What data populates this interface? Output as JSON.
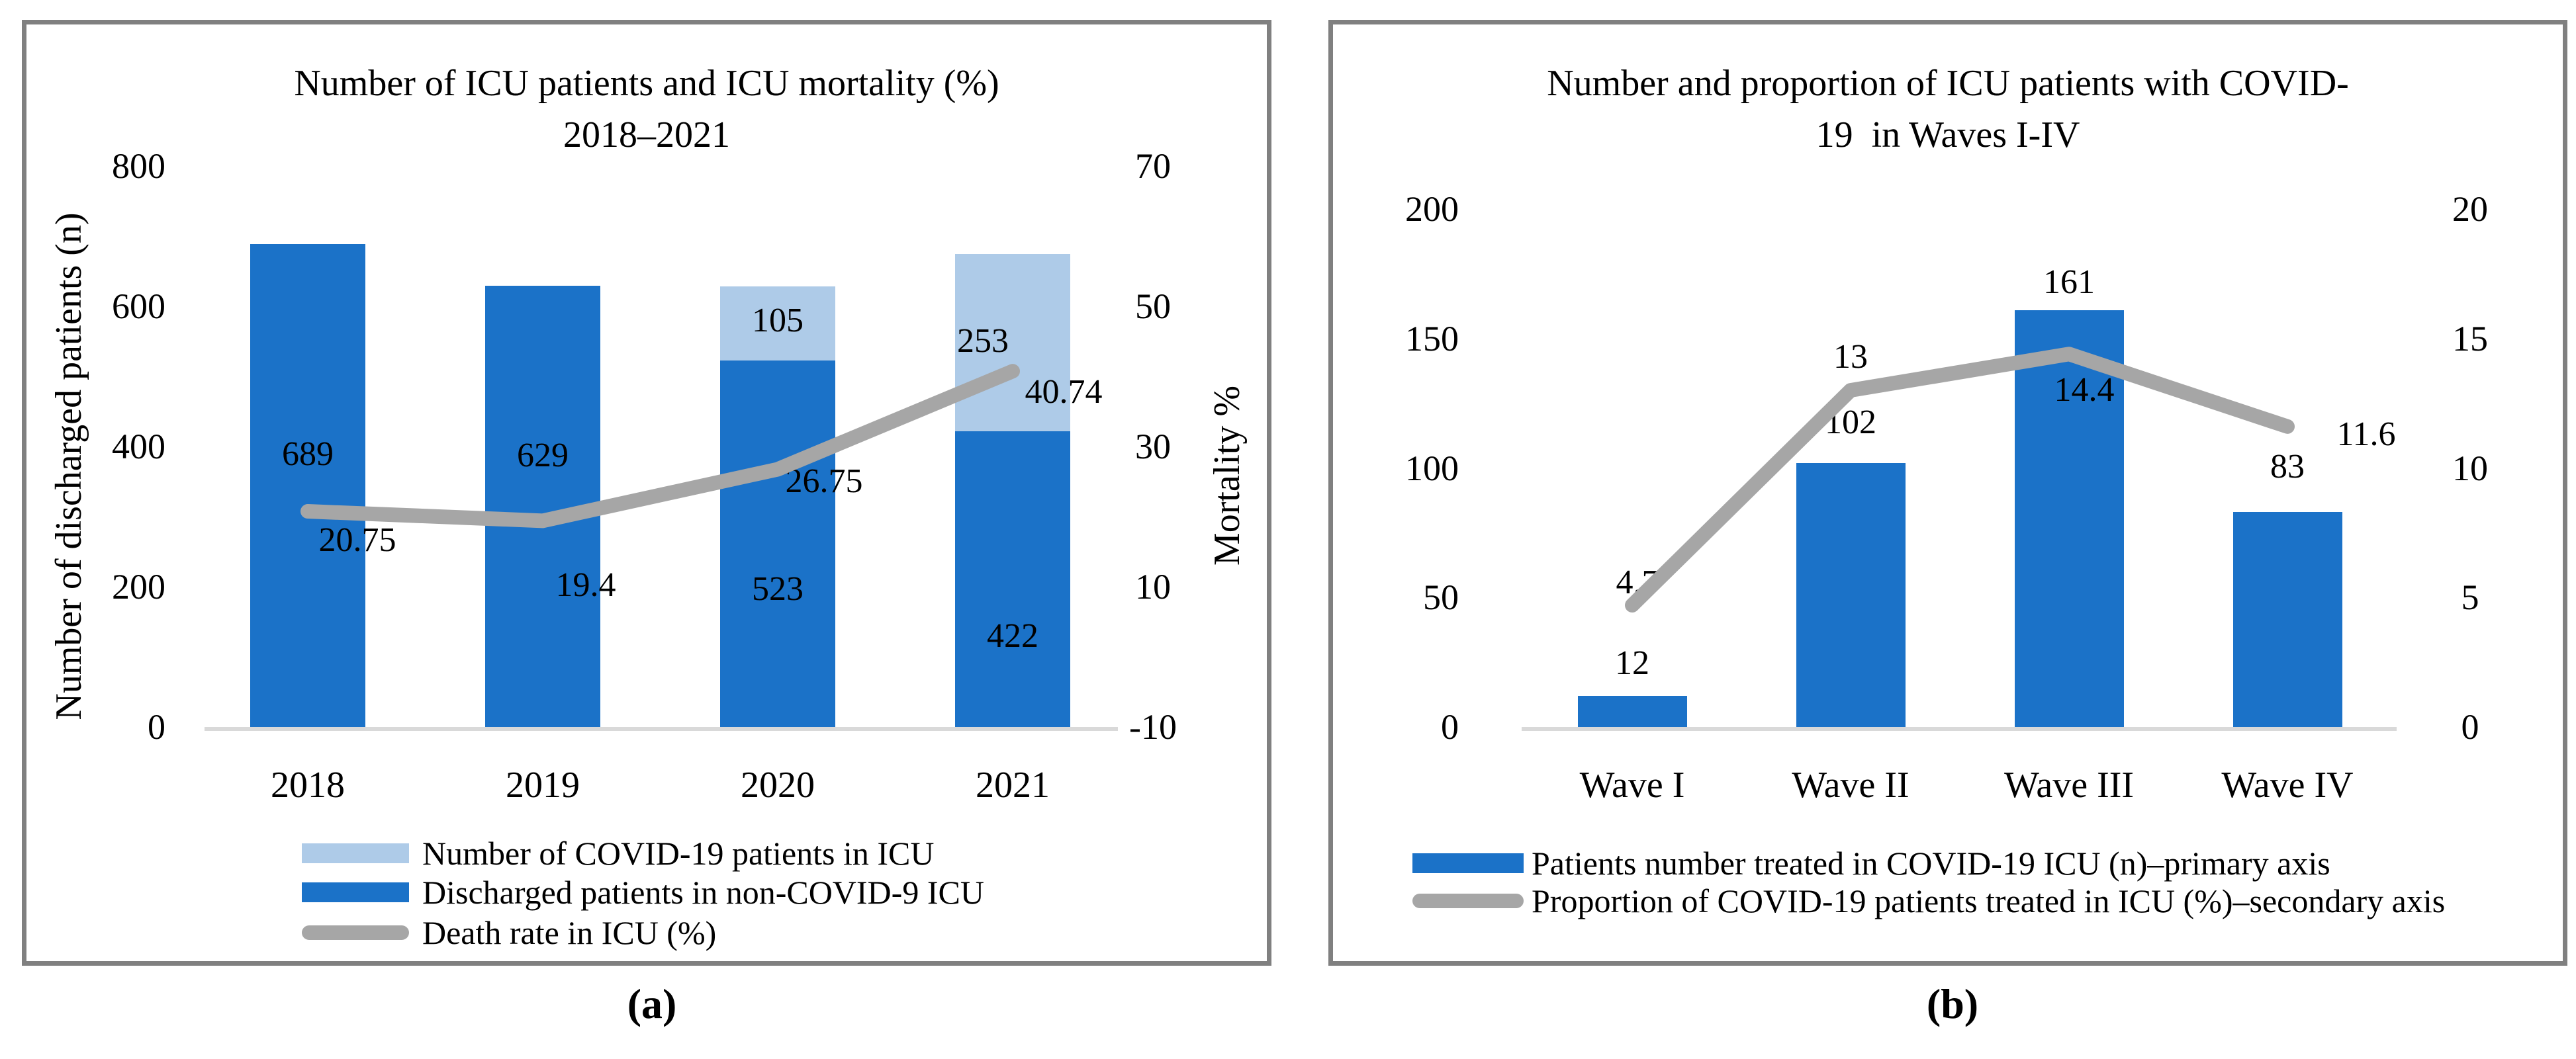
{
  "figure": {
    "caption_a": "(a)",
    "caption_b": "(b)"
  },
  "chart_data": [
    {
      "id": "a",
      "type": "combo-stacked-bar-line",
      "title_line1": "Number of ICU patients and ICU mortality (%)",
      "title_line2": "2018–2021",
      "categories": [
        "2018",
        "2019",
        "2020",
        "2021"
      ],
      "series": [
        {
          "name": "Number of COVID-19 patients in ICU",
          "type": "bar",
          "stack": "top",
          "color": "#AECBE8",
          "values": [
            null,
            null,
            105,
            253
          ]
        },
        {
          "name": "Discharged patients in non-COVID-9 ICU",
          "type": "bar",
          "stack": "base",
          "color": "#1B72C8",
          "values": [
            689,
            629,
            523,
            422
          ]
        },
        {
          "name": "Death rate in ICU (%)",
          "type": "line",
          "axis": "secondary",
          "color": "#A6A6A6",
          "values": [
            20.75,
            19.4,
            26.75,
            40.74
          ]
        }
      ],
      "y_primary": {
        "label": "Number of discharged patients (n)",
        "min": 0,
        "max": 800,
        "step": 200,
        "ticks": [
          800,
          600,
          400,
          200,
          0
        ]
      },
      "y_secondary": {
        "label": "Mortality %",
        "min": -10,
        "max": 70,
        "step": 20,
        "ticks": [
          70,
          50,
          30,
          10,
          -10
        ]
      },
      "legend": [
        {
          "label": "Number of COVID-19 patients in ICU",
          "swatch": "bar",
          "color": "#AECBE8"
        },
        {
          "label": "Discharged patients in non-COVID-9 ICU",
          "swatch": "bar",
          "color": "#1B72C8"
        },
        {
          "label": "Death rate in ICU (%)",
          "swatch": "line",
          "color": "#A6A6A6"
        }
      ],
      "grid": "off",
      "legend_position": "bottom"
    },
    {
      "id": "b",
      "type": "combo-bar-line",
      "title_line1": "Number and proportion of ICU patients with COVID-",
      "title_line2": "19  in Waves I-IV",
      "categories": [
        "Wave I",
        "Wave II",
        "Wave III",
        "Wave IV"
      ],
      "series": [
        {
          "name": "Patients number treated in COVID-19 ICU (n)–primary axis",
          "type": "bar",
          "stack": "base",
          "color": "#1B72C8",
          "values": [
            12,
            102,
            161,
            83
          ]
        },
        {
          "name": "Proportion of COVID-19 patients treated in ICU (%)–secondary axis",
          "type": "line",
          "axis": "secondary",
          "color": "#A6A6A6",
          "values": [
            4.7,
            13,
            14.4,
            11.6
          ]
        }
      ],
      "y_primary": {
        "label": "",
        "min": 0,
        "max": 200,
        "step": 50,
        "ticks": [
          200,
          150,
          100,
          50,
          0
        ]
      },
      "y_secondary": {
        "label": "",
        "min": 0,
        "max": 20,
        "step": 5,
        "ticks": [
          20,
          15,
          10,
          5,
          0
        ]
      },
      "legend": [
        {
          "label": "Patients number treated in COVID-19 ICU (n)–primary axis",
          "swatch": "bar",
          "color": "#1B72C8"
        },
        {
          "label": "Proportion of COVID-19 patients treated in ICU (%)–secondary axis",
          "swatch": "line",
          "color": "#A6A6A6"
        }
      ],
      "grid": "off",
      "legend_position": "bottom"
    }
  ],
  "colors": {
    "bar_dark_blue": "#1B72C8",
    "bar_light_blue": "#AECBE8",
    "line_gray": "#A6A6A6",
    "axis_gray": "#D9D9D9",
    "panel_border": "#808080"
  }
}
